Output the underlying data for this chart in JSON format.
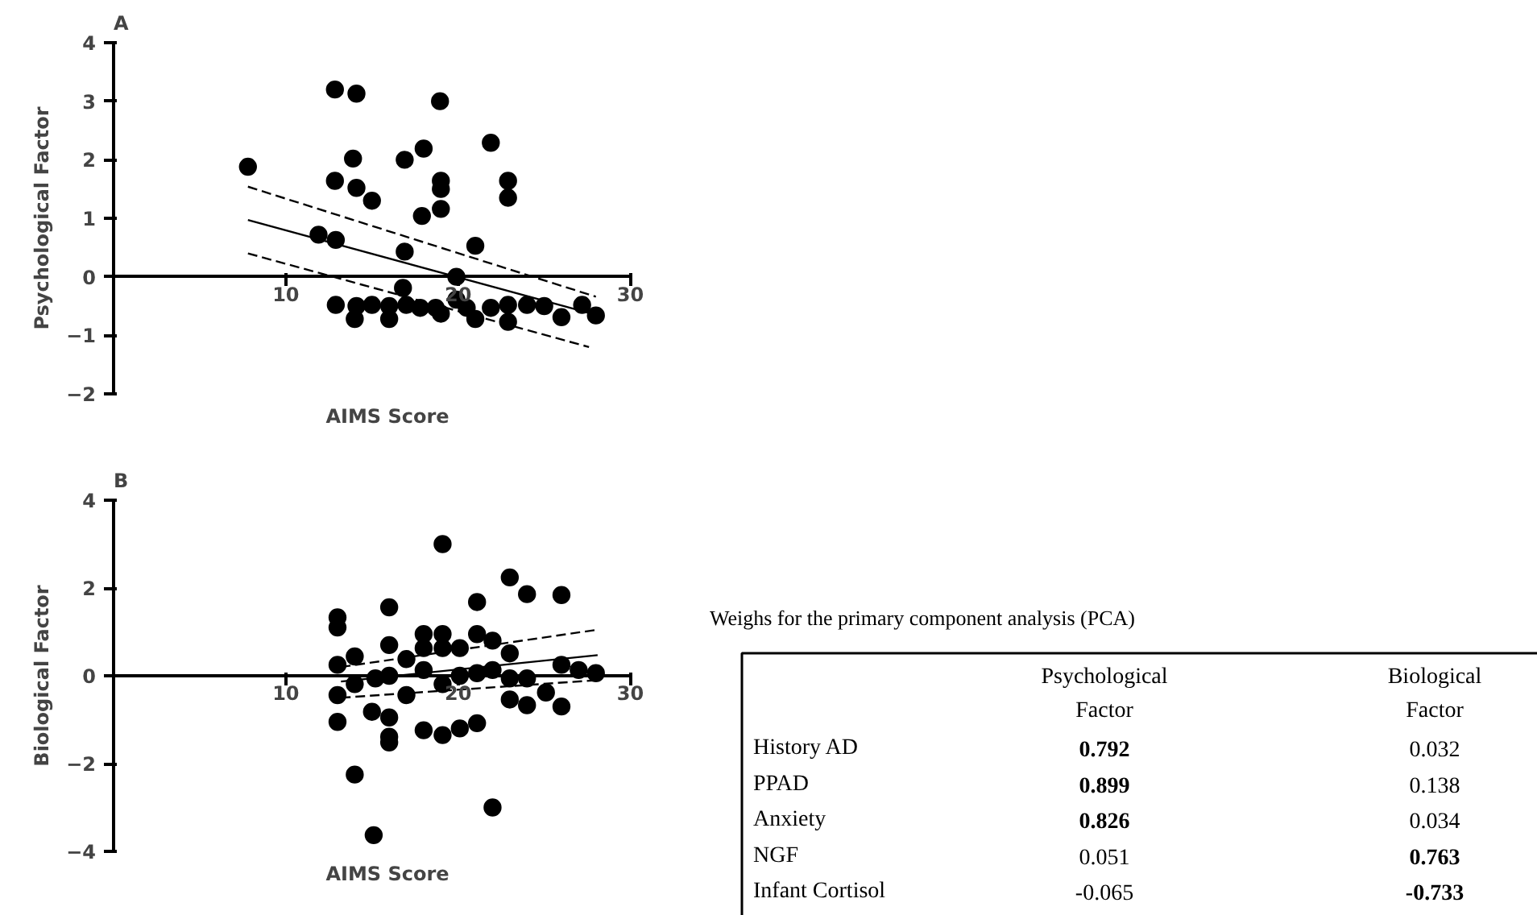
{
  "chart_data": [
    {
      "type": "scatter",
      "title": "A",
      "xlabel": "AIMS Score",
      "ylabel": "Psychological Factor",
      "xlim": [
        0,
        30
      ],
      "ylim": [
        -2,
        4
      ],
      "xticks": [
        10,
        20,
        30
      ],
      "yticks": [
        -2,
        -1,
        0,
        1,
        2,
        3,
        4
      ],
      "grid": false,
      "series": [
        {
          "color": "#000000",
          "marker": "circle",
          "x": [
            7.8,
            12.85,
            14.1,
            18.95,
            21.9,
            13.9,
            16.9,
            18.0,
            12.85,
            14.1,
            15.0,
            19.0,
            19.0,
            22.9,
            22.9,
            17.9,
            19.0,
            21.0,
            11.9,
            12.9,
            16.9,
            19.9,
            16.8,
            12.9,
            14.1,
            15.0,
            16.0,
            16.0,
            14.0,
            17.0,
            17.8,
            18.7,
            19.0,
            19.9,
            20.5,
            21.0,
            21.9,
            22.9,
            22.9,
            24.0,
            25.0,
            26.0,
            27.2,
            28.0
          ],
          "values": [
            1.88,
            3.2,
            3.13,
            3.0,
            2.29,
            2.02,
            2.0,
            2.19,
            1.64,
            1.52,
            1.3,
            1.64,
            1.5,
            1.64,
            1.35,
            1.04,
            1.16,
            0.53,
            0.72,
            0.63,
            0.43,
            0.0,
            -0.19,
            -0.48,
            -0.5,
            -0.48,
            -0.5,
            -0.72,
            -0.72,
            -0.48,
            -0.53,
            -0.53,
            -0.63,
            -0.39,
            -0.53,
            -0.72,
            -0.53,
            -0.48,
            -0.77,
            -0.48,
            -0.5,
            -0.69,
            -0.48,
            -0.66
          ]
        },
        {
          "type": "line",
          "color": "#000000",
          "line_style": "solid",
          "x": [
            7.8,
            28.0
          ],
          "values": [
            0.97,
            -0.65
          ]
        },
        {
          "type": "line",
          "color": "#000000",
          "line_style": "dashed",
          "x": [
            7.8,
            28.0
          ],
          "values": [
            1.54,
            -0.34
          ]
        },
        {
          "type": "line",
          "color": "#000000",
          "line_style": "dashed",
          "x": [
            7.8,
            27.6
          ],
          "values": [
            0.4,
            -1.2
          ]
        }
      ]
    },
    {
      "type": "scatter",
      "title": "B",
      "xlabel": "AIMS Score",
      "ylabel": "Biological Factor",
      "xlim": [
        0,
        30
      ],
      "ylim": [
        -4,
        4
      ],
      "xticks": [
        10,
        20,
        30
      ],
      "yticks": [
        -4,
        -2,
        0,
        2,
        4
      ],
      "grid": false,
      "series": [
        {
          "color": "#000000",
          "marker": "circle",
          "x": [
            13.0,
            13.0,
            13.0,
            13.0,
            13.0,
            14.0,
            14.0,
            14.0,
            15.0,
            15.1,
            16.0,
            16.0,
            16.0,
            16.0,
            16.0,
            16.0,
            15.2,
            17.0,
            17.0,
            18.0,
            18.0,
            18.0,
            18.0,
            19.1,
            19.1,
            19.1,
            19.1,
            19.1,
            20.1,
            20.1,
            20.1,
            21.1,
            21.1,
            21.1,
            21.1,
            22.0,
            22.0,
            22.0,
            23.0,
            23.0,
            23.0,
            23.0,
            24.0,
            24.0,
            24.0,
            25.1,
            26.0,
            26.0,
            26.0,
            27.0,
            28.0
          ],
          "values": [
            1.33,
            1.1,
            0.25,
            -0.44,
            -1.05,
            0.44,
            -0.19,
            -2.25,
            -0.82,
            -3.63,
            1.56,
            0.7,
            -0.95,
            -1.39,
            -1.52,
            0.0,
            -0.06,
            0.38,
            -0.44,
            0.95,
            0.63,
            0.13,
            -1.24,
            3.0,
            0.95,
            0.63,
            -0.19,
            -1.35,
            0.63,
            -1.2,
            0.0,
            1.68,
            0.95,
            -1.08,
            0.06,
            0.8,
            -3.0,
            0.13,
            2.24,
            0.51,
            -0.54,
            -0.06,
            1.86,
            -0.67,
            -0.06,
            -0.38,
            1.84,
            0.25,
            -0.7,
            0.13,
            0.06
          ]
        },
        {
          "type": "line",
          "color": "#000000",
          "line_style": "solid",
          "x": [
            13.2,
            28.1
          ],
          "values": [
            -0.13,
            0.47
          ]
        },
        {
          "type": "line",
          "color": "#000000",
          "line_style": "dashed",
          "x": [
            13.2,
            28.1
          ],
          "values": [
            0.2,
            1.05
          ]
        },
        {
          "type": "line",
          "color": "#000000",
          "line_style": "dashed",
          "x": [
            13.2,
            28.1
          ],
          "values": [
            -0.5,
            -0.1
          ]
        }
      ]
    },
    {
      "type": "other",
      "title": "Weighs for the primary component analysis (PCA)",
      "data_labels": true,
      "categories": [
        "History AD",
        "PPAD",
        "Anxiety",
        "NGF",
        "Infant Cortisol"
      ],
      "series": [
        {
          "name": "Psychological Factor",
          "values": [
            0.792,
            0.899,
            0.826,
            0.051,
            -0.065
          ]
        },
        {
          "name": "Biological Factor",
          "values": [
            0.032,
            0.138,
            0.034,
            0.763,
            -0.733
          ]
        }
      ]
    }
  ]
}
